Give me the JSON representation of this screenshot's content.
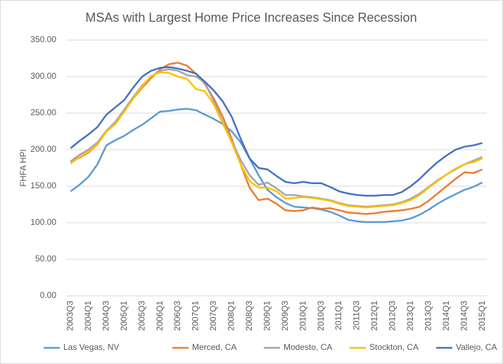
{
  "chart_data": {
    "type": "line",
    "title": "MSAs with Largest Home Price Increases Since Recession",
    "y_label": "FHFA HPI",
    "categories": [
      "2003Q3",
      null,
      "2004Q1",
      null,
      "2004Q3",
      null,
      "2005Q1",
      null,
      "2005Q3",
      null,
      "2006Q1",
      null,
      "2006Q3",
      null,
      "2007Q1",
      null,
      "2007Q3",
      null,
      "2008Q1",
      null,
      "2008Q3",
      null,
      "2009Q1",
      null,
      "2009Q3",
      null,
      "2010Q1",
      null,
      "2010Q3",
      null,
      "2011Q1",
      null,
      "2011Q3",
      null,
      "2012Q1",
      null,
      "2012Q3",
      null,
      "2013Q1",
      null,
      "2013Q3",
      null,
      "2014Q1",
      null,
      "2014Q3",
      null,
      "2015Q1"
    ],
    "series": [
      {
        "name": "Las Vegas, NV",
        "color": "#5b9bd5",
        "values": [
          143,
          152,
          163,
          180,
          206,
          213,
          219,
          227,
          234,
          243,
          252,
          253,
          255,
          256,
          254,
          248,
          242,
          235,
          225,
          210,
          188,
          165,
          145,
          135,
          127,
          122,
          121,
          120,
          118,
          115,
          110,
          104,
          102,
          101,
          101,
          101,
          102,
          103,
          106,
          111,
          118,
          126,
          133,
          139,
          145,
          149,
          155
        ]
      },
      {
        "name": "Merced, CA",
        "color": "#ed7d31",
        "values": [
          183,
          189,
          196,
          207,
          225,
          237,
          252,
          270,
          285,
          298,
          310,
          317,
          319,
          315,
          304,
          290,
          270,
          245,
          215,
          180,
          148,
          131,
          133,
          126,
          117,
          116,
          117,
          121,
          119,
          120,
          117,
          114,
          113,
          112,
          113,
          115,
          116,
          117,
          119,
          122,
          130,
          140,
          150,
          160,
          169,
          168,
          173
        ]
      },
      {
        "name": "Modesto, CA",
        "color": "#a5a5a5",
        "values": [
          184,
          193,
          200,
          210,
          226,
          238,
          255,
          272,
          288,
          300,
          308,
          310,
          308,
          302,
          300,
          292,
          266,
          238,
          212,
          186,
          165,
          152,
          155,
          147,
          138,
          138,
          136,
          135,
          133,
          131,
          127,
          124,
          123,
          122,
          123,
          124,
          125,
          128,
          133,
          140,
          149,
          158,
          166,
          173,
          180,
          185,
          190
        ]
      },
      {
        "name": "Stockton, CA",
        "color": "#ffc000",
        "values": [
          181,
          190,
          197,
          207,
          225,
          235,
          252,
          270,
          287,
          301,
          306,
          305,
          300,
          297,
          283,
          280,
          262,
          236,
          210,
          180,
          157,
          148,
          148,
          143,
          133,
          134,
          135,
          134,
          132,
          130,
          126,
          123,
          122,
          121,
          122,
          123,
          124,
          127,
          131,
          138,
          148,
          157,
          166,
          174,
          180,
          183,
          188
        ]
      },
      {
        "name": "Vallejo, CA",
        "color": "#4472c4",
        "values": [
          202,
          212,
          221,
          231,
          248,
          258,
          268,
          285,
          300,
          308,
          312,
          313,
          311,
          308,
          304,
          293,
          281,
          266,
          245,
          215,
          188,
          175,
          173,
          164,
          156,
          154,
          156,
          154,
          154,
          149,
          143,
          140,
          138,
          137,
          137,
          138,
          138,
          142,
          150,
          160,
          172,
          183,
          192,
          200,
          204,
          206,
          209
        ]
      }
    ],
    "ylim": [
      0,
      350
    ],
    "yticks": [
      {
        "value": 0,
        "label": "0.00"
      },
      {
        "value": 50,
        "label": "50.00"
      },
      {
        "value": 100,
        "label": "100.00"
      },
      {
        "value": 150,
        "label": "150.00"
      },
      {
        "value": 200,
        "label": "200.00"
      },
      {
        "value": 250,
        "label": "250.00"
      },
      {
        "value": 300,
        "label": "300.00"
      },
      {
        "value": 350,
        "label": "350.00"
      }
    ],
    "grid": true,
    "legend": "bottom"
  }
}
